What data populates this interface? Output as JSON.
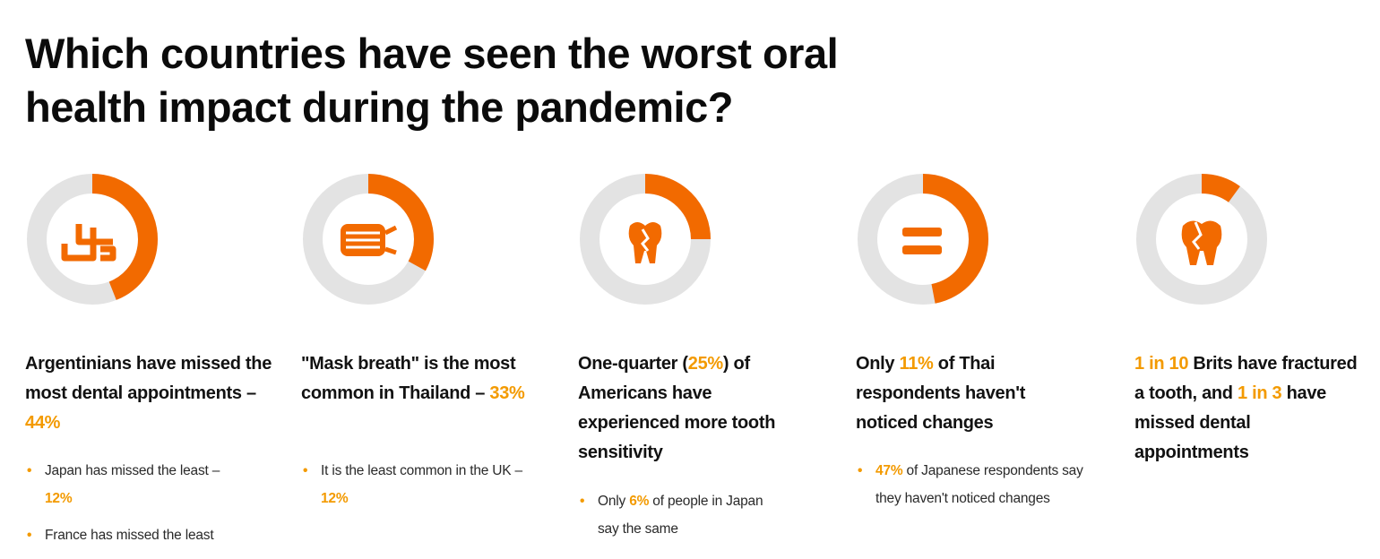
{
  "title": {
    "line1": "Which countries have seen the worst oral",
    "line2": "health impact during the pandemic?"
  },
  "colors": {
    "accent": "#f26a00",
    "track": "#e3e3e3",
    "highlight": "#f39a00"
  },
  "cards": [
    {
      "icon": "calendar-clock-icon",
      "ring_fraction": 0.44,
      "headline_parts": [
        "Argentinians have missed the most dental appointments – ",
        "44%"
      ],
      "bullets": [
        {
          "pre": "Japan has missed the least – ",
          "val": "12%",
          "post": ""
        },
        {
          "pre": "France has missed the least",
          "val": "",
          "post": ""
        }
      ]
    },
    {
      "icon": "face-mask-icon",
      "ring_fraction": 0.33,
      "headline_parts": [
        "\"Mask breath\" is the most common in Thailand – ",
        "33%"
      ],
      "bullets": [
        {
          "pre": "It is the least common in the UK – ",
          "val": "12%",
          "post": ""
        }
      ]
    },
    {
      "icon": "sensitive-tooth-icon",
      "ring_fraction": 0.25,
      "headline_parts": [
        "One-quarter (",
        "25%",
        ") of Americans have experienced more tooth sensitivity"
      ],
      "bullets": [
        {
          "pre": "Only ",
          "val": "6%",
          "post": " of people in Japan say the same"
        }
      ]
    },
    {
      "icon": "equals-icon",
      "ring_fraction": 0.47,
      "headline_parts": [
        "Only ",
        "11%",
        " of Thai respondents haven't noticed changes"
      ],
      "bullets": [
        {
          "pre": "",
          "val": "47%",
          "post": " of Japanese respondents say they haven't noticed changes"
        }
      ]
    },
    {
      "icon": "fractured-tooth-icon",
      "ring_fraction": 0.1,
      "headline_parts": [
        "1 in 10",
        " Brits have fractured a tooth, and ",
        "1 in 3",
        " have missed dental appointments"
      ],
      "bullets": []
    }
  ]
}
